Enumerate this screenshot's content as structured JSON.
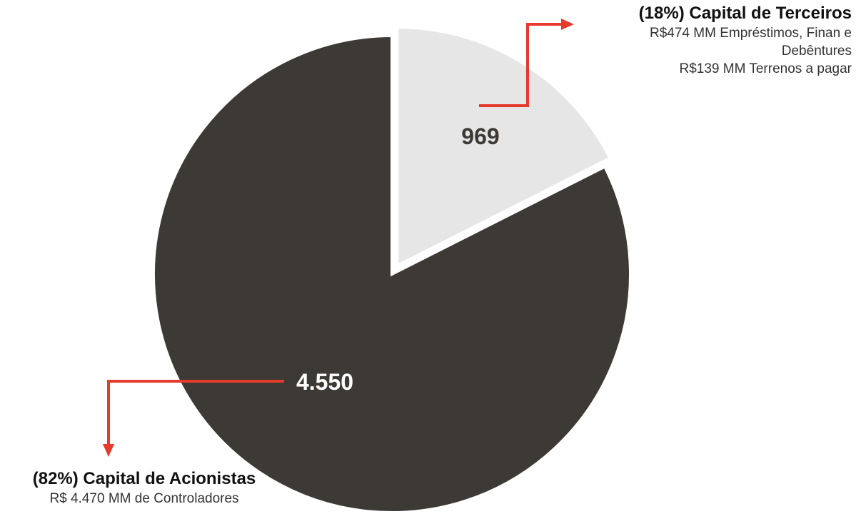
{
  "chart_data": {
    "type": "pie",
    "slices": [
      {
        "value": 969,
        "label": "969",
        "color": "#e6e6e6"
      },
      {
        "value": 4550,
        "label": "4.550",
        "color": "#3d3934"
      }
    ],
    "title": "",
    "legend": "callouts"
  },
  "colors": {
    "accent": "#e53a2c",
    "dark": "#3d3934",
    "light": "#e6e6e6"
  },
  "callouts": {
    "terceiros": {
      "title": "(18%) Capital de Terceiros",
      "lines": [
        "R$474 MM Empréstimos, Finan e",
        "Debêntures",
        "R$139 MM Terrenos a pagar"
      ]
    },
    "acionistas": {
      "title": "(82%) Capital de Acionistas",
      "lines": [
        "R$ 4.470 MM de Controladores"
      ]
    }
  }
}
